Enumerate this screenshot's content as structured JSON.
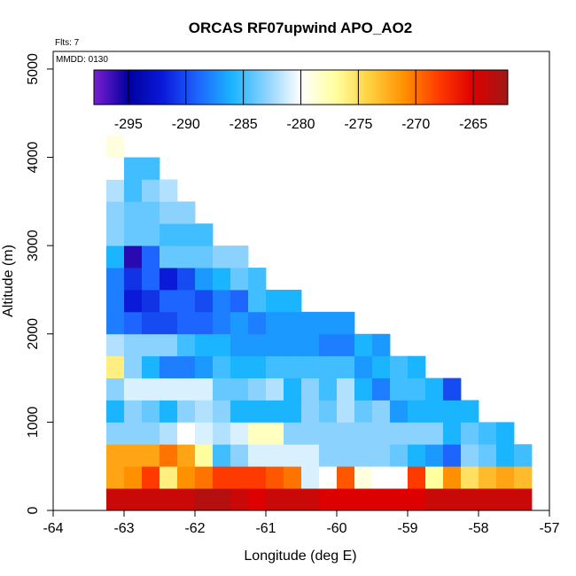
{
  "chart_data": {
    "type": "heatmap",
    "title": "ORCAS RF07upwind APO_AO2",
    "note_flights": "Flts: 7",
    "note_date": "MMDD: 0130",
    "xlabel": "Longitude (deg E)",
    "ylabel": "Altitude (m)",
    "xlim": [
      -64,
      -57
    ],
    "ylim": [
      0,
      5200
    ],
    "x_ticks": [
      "-64",
      "-63",
      "-62",
      "-61",
      "-60",
      "-59",
      "-58",
      "-57"
    ],
    "x_tick_values": [
      -64,
      -63,
      -62,
      -61,
      -60,
      -59,
      -58,
      -57
    ],
    "y_ticks": [
      "0",
      "1000",
      "2000",
      "3000",
      "4000",
      "5000"
    ],
    "y_tick_values": [
      0,
      1000,
      2000,
      3000,
      4000,
      5000
    ],
    "colorbar": {
      "range": [
        -298,
        -262
      ],
      "ticks": [
        "-295",
        "-290",
        "-285",
        "-280",
        "-275",
        "-270",
        "-265"
      ],
      "tick_values": [
        -295,
        -290,
        -285,
        -280,
        -275,
        -270,
        -265
      ],
      "colors": [
        "#7a1fd0",
        "#0000a0",
        "#0a1ad8",
        "#1e64ff",
        "#1ab4ff",
        "#8cd2ff",
        "#ffffff",
        "#ffffa0",
        "#ffd040",
        "#ff9000",
        "#ff3a00",
        "#dd0000",
        "#a01818"
      ]
    },
    "grid": {
      "x_start": -63.25,
      "dx": 0.25,
      "y_start": 0,
      "dy": 250,
      "rows": [
        [
          -264,
          -264,
          -264,
          -264,
          -264,
          -263,
          -263,
          -264,
          -265,
          -264,
          -264,
          -264,
          -265,
          -265,
          -265,
          -265,
          -265,
          -265,
          -264,
          -264,
          -264,
          -264,
          -264,
          -264
        ],
        [
          -272,
          -271,
          -268,
          -276,
          -271,
          -270,
          -268,
          -268,
          -268,
          -269,
          -270,
          -281,
          -280,
          -269,
          -279,
          -280,
          -280,
          -268,
          -277,
          -271,
          -275,
          -273,
          -272,
          -273
        ],
        [
          -272,
          -272,
          -272,
          -270,
          -272,
          -277,
          -285,
          -283,
          -281,
          -281,
          -281,
          -281,
          -283,
          -283,
          -283,
          -283,
          -284,
          -286,
          -287,
          -289,
          -283,
          -284,
          -286,
          -285
        ],
        [
          -283,
          -283,
          -283,
          -282,
          -280,
          -281,
          -282,
          -281,
          -278,
          -278,
          -283,
          -283,
          -283,
          -283,
          -283,
          -283,
          -283,
          -283,
          -283,
          -286,
          -284,
          -285,
          -286
        ],
        [
          -286,
          -283,
          -284,
          -286,
          -283,
          -282,
          -283,
          -286,
          -286,
          -286,
          -286,
          -283,
          -284,
          -282,
          -284,
          -283,
          -287,
          -286,
          -286,
          -286,
          -286
        ],
        [
          -283,
          -281,
          -281,
          -281,
          -281,
          -281,
          -284,
          -284,
          -283,
          -282,
          -286,
          -283,
          -285,
          -282,
          -286,
          -288,
          -285,
          -285,
          -286,
          -290
        ],
        [
          -276,
          -283,
          -286,
          -288,
          -288,
          -287,
          -285,
          -286,
          -286,
          -285,
          -285,
          -285,
          -285,
          -285,
          -287,
          -286,
          -285,
          -286
        ],
        [
          -282,
          -283,
          -283,
          -283,
          -285,
          -286,
          -286,
          -287,
          -287,
          -287,
          -287,
          -287,
          -288,
          -288,
          -286,
          -287
        ],
        [
          -288,
          -289,
          -290,
          -290,
          -289,
          -289,
          -288,
          -287,
          -288,
          -287,
          -287,
          -287,
          -287,
          -287
        ],
        [
          -288,
          -292,
          -291,
          -289,
          -289,
          -290,
          -288,
          -289,
          -285,
          -286,
          -286
        ],
        [
          -288,
          -291,
          -289,
          -292,
          -290,
          -287,
          -286,
          -284,
          -285
        ],
        [
          -286,
          -296,
          -289,
          -284,
          -284,
          -284,
          -283,
          -283
        ],
        [
          -283,
          -284,
          -284,
          -285,
          -285,
          -285
        ],
        [
          -283,
          -284,
          -284,
          -283,
          -283
        ],
        [
          -282,
          -285,
          -283,
          -282
        ],
        [
          -280,
          -285,
          -285
        ],
        [
          -279
        ]
      ]
    }
  }
}
